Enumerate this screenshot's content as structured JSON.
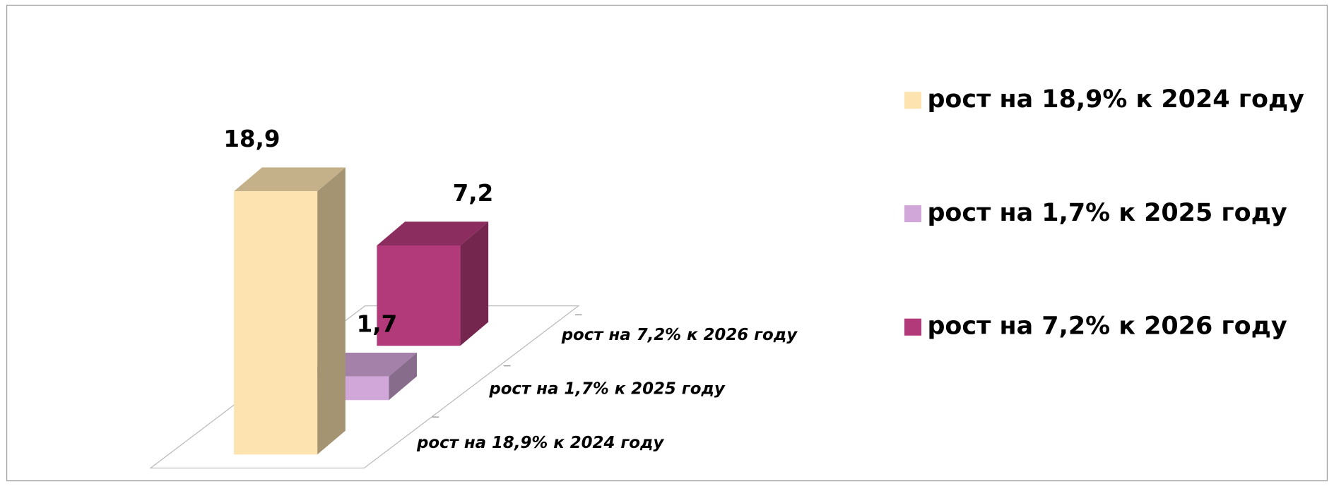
{
  "chart_data": {
    "type": "bar",
    "categories": [
      "рост на 18,9% к 2024 году",
      "рост на 1,7% к 2025 году",
      "рост на 7,2% к 2026 году"
    ],
    "values": [
      18.9,
      1.7,
      7.2
    ],
    "value_labels": [
      "18,9",
      "1,7",
      "7,2"
    ],
    "colors": [
      "#fde3b0",
      "#d1a6d8",
      "#b33a7a"
    ],
    "legend": "right"
  }
}
